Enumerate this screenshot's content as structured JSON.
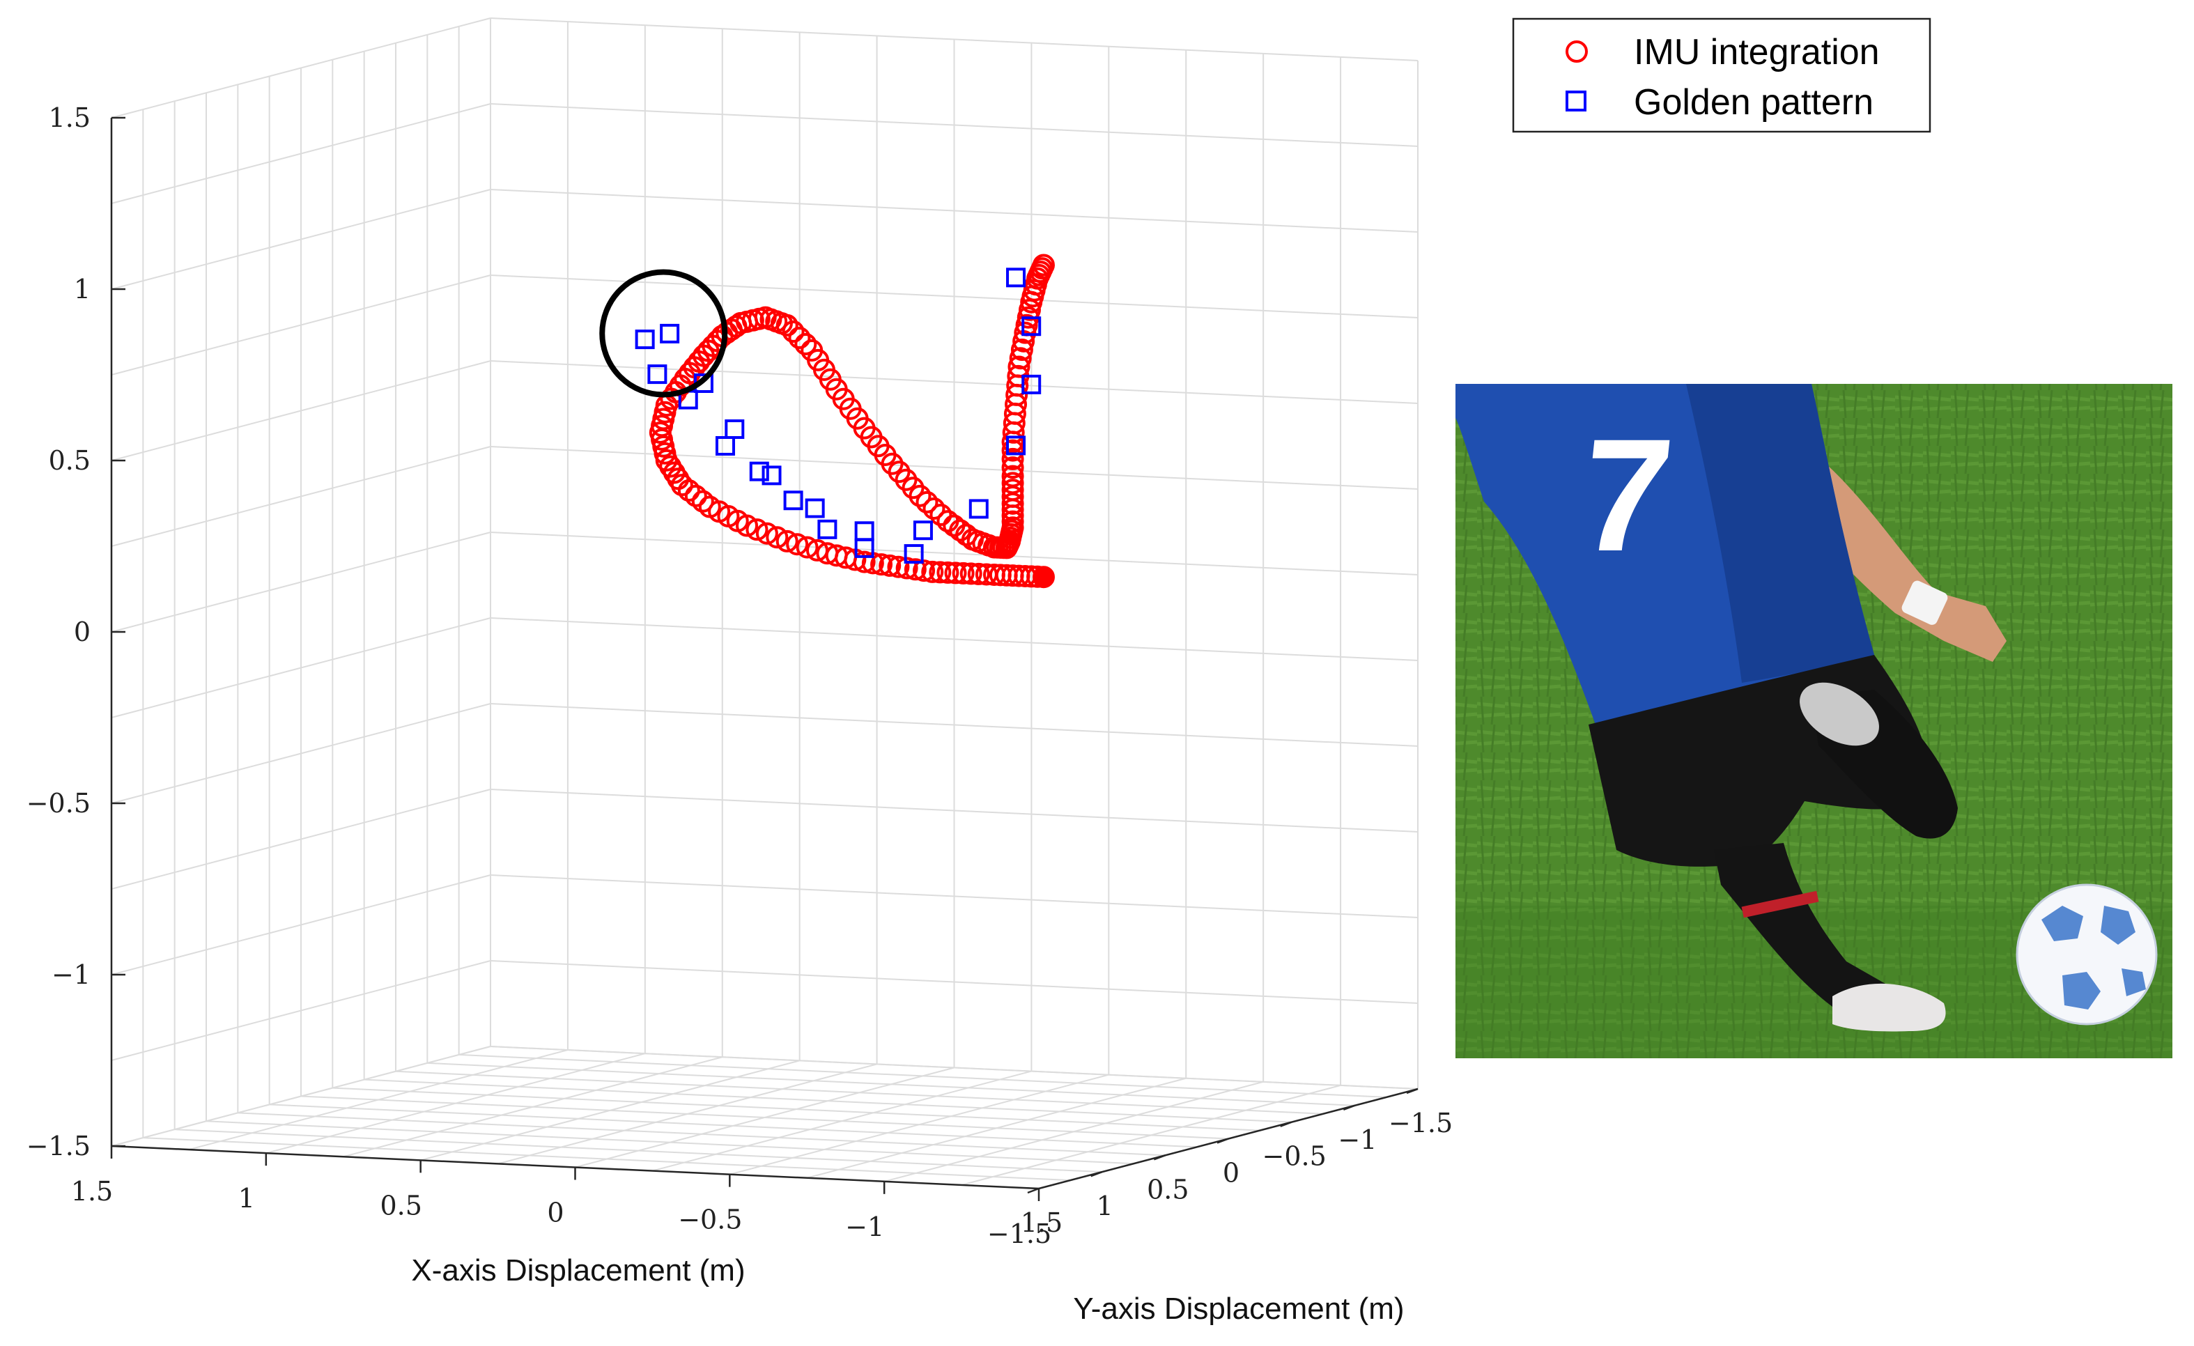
{
  "chart_data": {
    "type": "scatter",
    "projection": "3d",
    "title": "",
    "xlabel": "X-axis Displacement (m)",
    "ylabel": "Y-axis Displacement (m)",
    "zlabel": "",
    "xlim": [
      -1.5,
      1.5
    ],
    "ylim": [
      -1.5,
      1.5
    ],
    "zlim": [
      -1.5,
      1.5
    ],
    "grid": true,
    "legend_position": "top-right",
    "x_ticks": [
      {
        "value": 1.5,
        "label": "1.5"
      },
      {
        "value": 1,
        "label": "1"
      },
      {
        "value": 0.5,
        "label": "0.5"
      },
      {
        "value": 0,
        "label": "0"
      },
      {
        "value": -0.5,
        "label": "−0.5"
      },
      {
        "value": -1,
        "label": "−1"
      },
      {
        "value": -1.5,
        "label": "−1.5"
      }
    ],
    "y_ticks": [
      {
        "value": 1.5,
        "label": "1.5"
      },
      {
        "value": 1,
        "label": "1"
      },
      {
        "value": 0.5,
        "label": "0.5"
      },
      {
        "value": 0,
        "label": "0"
      },
      {
        "value": -0.5,
        "label": "−0.5"
      },
      {
        "value": -1,
        "label": "−1"
      },
      {
        "value": -1.5,
        "label": "−1.5"
      }
    ],
    "z_ticks": [
      {
        "value": 1.5,
        "label": "1.5"
      },
      {
        "value": 1,
        "label": "1"
      },
      {
        "value": 0.5,
        "label": "0.5"
      },
      {
        "value": 0,
        "label": "0"
      },
      {
        "value": -0.5,
        "label": "−0.5"
      },
      {
        "value": -1,
        "label": "−1"
      },
      {
        "value": -1.5,
        "label": "−1.5"
      }
    ],
    "series": [
      {
        "name": "IMU integration",
        "marker": "circle",
        "color": "#ff0000",
        "x": [
          -0.78,
          -0.76,
          -0.74,
          -0.72,
          -0.7,
          -0.69,
          -0.68,
          -0.68,
          -0.68,
          -0.68,
          -0.67,
          -0.66,
          -0.62,
          -0.55,
          -0.47,
          -0.38,
          -0.29,
          -0.2,
          -0.11,
          -0.03,
          0.05,
          0.12,
          0.2,
          0.26,
          0.32,
          0.38,
          0.44,
          0.46,
          0.44,
          0.39,
          0.3,
          0.18,
          0.05,
          -0.08,
          -0.2,
          -0.31,
          -0.42,
          -0.52,
          -0.62,
          -0.7,
          -0.78
        ],
        "y": [
          -0.3,
          -0.3,
          -0.3,
          -0.3,
          -0.3,
          -0.3,
          -0.3,
          -0.3,
          -0.3,
          -0.3,
          -0.3,
          -0.3,
          -0.3,
          -0.3,
          -0.3,
          -0.3,
          -0.3,
          -0.3,
          -0.3,
          -0.3,
          -0.3,
          -0.3,
          -0.3,
          -0.3,
          -0.3,
          -0.3,
          -0.3,
          -0.3,
          -0.3,
          -0.3,
          -0.3,
          -0.3,
          -0.3,
          -0.3,
          -0.3,
          -0.3,
          -0.3,
          -0.3,
          -0.3,
          -0.3,
          -0.3
        ],
        "z": [
          0.99,
          0.95,
          0.88,
          0.79,
          0.69,
          0.58,
          0.47,
          0.37,
          0.29,
          0.22,
          0.18,
          0.16,
          0.16,
          0.18,
          0.23,
          0.3,
          0.39,
          0.49,
          0.6,
          0.71,
          0.78,
          0.8,
          0.78,
          0.74,
          0.68,
          0.61,
          0.53,
          0.45,
          0.37,
          0.3,
          0.24,
          0.19,
          0.15,
          0.12,
          0.1,
          0.09,
          0.08,
          0.08,
          0.08,
          0.08,
          0.08
        ]
      },
      {
        "name": "Golden pattern",
        "marker": "square",
        "color": "#0000ff",
        "x": [
          -0.69,
          -0.74,
          -0.74,
          -0.69,
          -0.57,
          -0.39,
          -0.2,
          -0.04,
          0.1,
          0.22,
          0.32,
          0.43,
          0.51,
          0.47,
          0.37,
          0.25,
          0.14,
          0.03,
          -0.08,
          -0.2,
          -0.36
        ],
        "y": [
          -0.3,
          -0.3,
          -0.3,
          -0.3,
          -0.3,
          -0.3,
          -0.3,
          -0.3,
          -0.3,
          -0.3,
          -0.3,
          -0.3,
          -0.3,
          -0.3,
          -0.3,
          -0.3,
          -0.3,
          -0.3,
          -0.3,
          -0.3,
          -0.3
        ],
        "z": [
          0.95,
          0.81,
          0.64,
          0.46,
          0.27,
          0.2,
          0.19,
          0.25,
          0.34,
          0.47,
          0.6,
          0.74,
          0.72,
          0.62,
          0.55,
          0.42,
          0.35,
          0.27,
          0.19,
          0.14,
          0.13
        ]
      }
    ],
    "annotations": [
      {
        "type": "circle",
        "x": 0.45,
        "y": -0.3,
        "z": 0.74,
        "color": "#000000"
      }
    ]
  },
  "legend": {
    "entries": [
      {
        "label": "IMU integration",
        "marker": "circle",
        "color": "#ff0000"
      },
      {
        "label": "Golden pattern",
        "marker": "square",
        "color": "#0000ff"
      }
    ]
  },
  "photo": {
    "jersey_number": "7",
    "colors": {
      "grass": "#4e8a2c",
      "jersey": "#1f4fb0",
      "shorts": "#151515",
      "skin": "#d49a78"
    }
  }
}
